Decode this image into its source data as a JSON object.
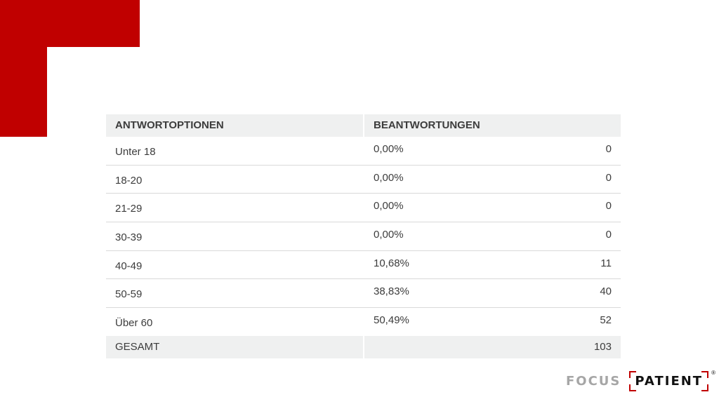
{
  "table": {
    "header": {
      "col1": "ANTWORTOPTIONEN",
      "col2": "BEANTWORTUNGEN"
    },
    "rows": [
      {
        "option": "Unter 18",
        "percent": "0,00%",
        "count": "0"
      },
      {
        "option": "18-20",
        "percent": "0,00%",
        "count": "0"
      },
      {
        "option": "21-29",
        "percent": "0,00%",
        "count": "0"
      },
      {
        "option": "30-39",
        "percent": "0,00%",
        "count": "0"
      },
      {
        "option": "40-49",
        "percent": "10,68%",
        "count": "11"
      },
      {
        "option": "50-59",
        "percent": "38,83%",
        "count": "40"
      },
      {
        "option": "Über 60",
        "percent": "50,49%",
        "count": "52"
      }
    ],
    "total": {
      "label": "GESAMT",
      "count": "103"
    }
  },
  "logo": {
    "word1": "FOCUS",
    "word2": "PATIENT",
    "registered": "®"
  },
  "colors": {
    "accent": "#c00000",
    "header_bg": "#eff0f0",
    "text": "#3c3c3c"
  }
}
